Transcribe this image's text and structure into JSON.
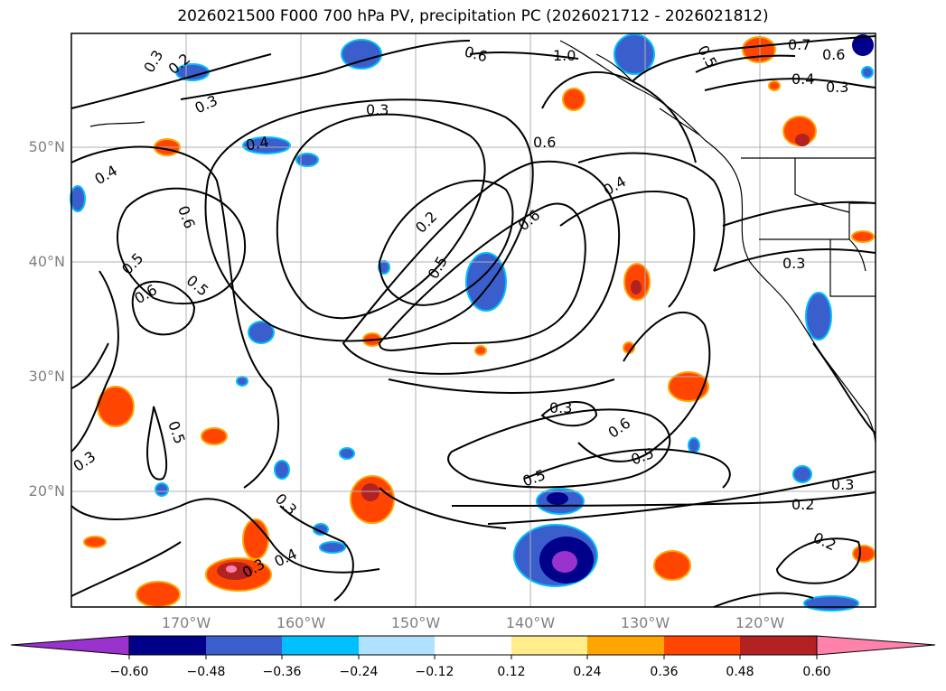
{
  "title": "2026021500 F000 700 hPa PV, precipitation PC (2026021712 - 2026021812)",
  "map": {
    "lat_labels": [
      "50°N",
      "40°N",
      "30°N",
      "20°N"
    ],
    "lon_labels": [
      "170°W",
      "160°W",
      "150°W",
      "140°W",
      "130°W",
      "120°W"
    ]
  },
  "contour_labels": [
    "0.3",
    "0.2",
    "0.3",
    "0.4",
    "0.4",
    "0.6",
    "0.5",
    "0.6",
    "0.5",
    "0.3",
    "0.2",
    "0.5",
    "0.6",
    "0.6",
    "0.6",
    "0.4",
    "1.0",
    "0.5",
    "0.7",
    "0.6",
    "0.4",
    "0.3",
    "0.3",
    "0.3",
    "0.6",
    "0.5",
    "0.5",
    "0.3",
    "0.2",
    "0.3",
    "0.2",
    "0.3",
    "0.4",
    "0.5",
    "0.3"
  ],
  "colorbar": {
    "ticks": [
      "−0.60",
      "−0.48",
      "−0.36",
      "−0.24",
      "−0.12",
      "0.12",
      "0.24",
      "0.36",
      "0.48",
      "0.60"
    ],
    "colors": [
      "#9a32cd",
      "#00008b",
      "#3a5fcd",
      "#00bfff",
      "#b0e2ff",
      "#ffffff",
      "#ffec8b",
      "#ffa500",
      "#ff4500",
      "#b22222",
      "#ff82ab"
    ]
  }
}
